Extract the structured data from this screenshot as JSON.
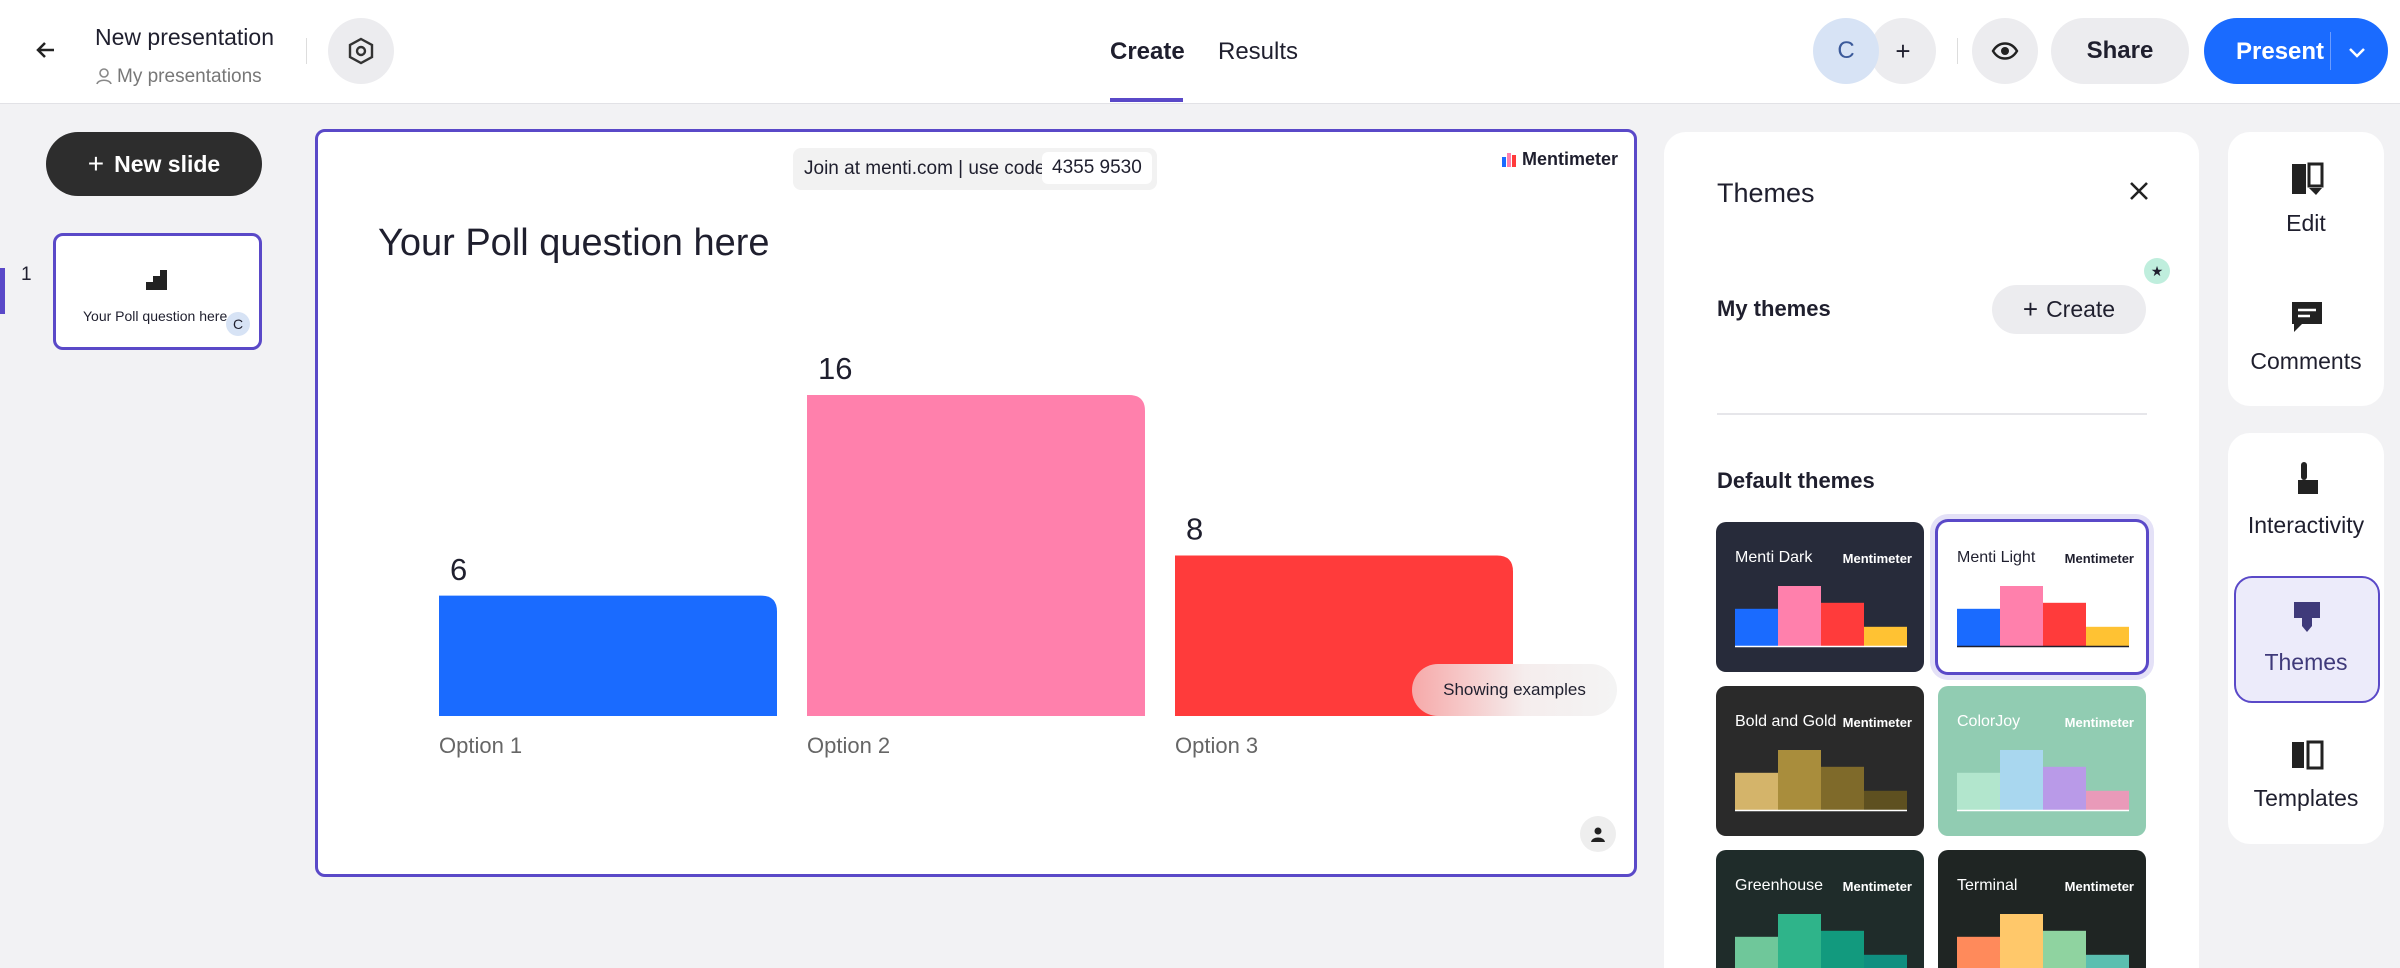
{
  "header": {
    "title": "New presentation",
    "subtitle": "My presentations",
    "tabs": [
      "Create",
      "Results"
    ],
    "avatar": "C",
    "share": "Share",
    "present": "Present"
  },
  "sidebar": {
    "new_slide": "New slide",
    "slides": [
      {
        "number": "1",
        "title": "Your Poll question here",
        "avatar": "C"
      }
    ]
  },
  "slide": {
    "join_text": "Join at menti.com | use code",
    "code": "4355 9530",
    "brand": "Mentimeter",
    "title": "Your Poll question here",
    "badge": "Showing examples",
    "chart": {
      "type": "bar",
      "categories": [
        "Option 1",
        "Option 2",
        "Option 3"
      ],
      "values": [
        6,
        16,
        8
      ],
      "colors": [
        "#1a6bff",
        "#ff80ac",
        "#ff3b3b"
      ]
    }
  },
  "themes_panel": {
    "title": "Themes",
    "my_themes": "My themes",
    "create": "Create",
    "default_themes": "Default themes",
    "themes": [
      {
        "name": "Menti Dark",
        "brand": "Mentimeter",
        "background": "#272b3a",
        "text": "#ffffff",
        "colors": [
          "#1a6bff",
          "#ff80ac",
          "#ff3b3b",
          "#ffc233"
        ]
      },
      {
        "name": "Menti Light",
        "brand": "Mentimeter",
        "background": "#ffffff",
        "text": "#1f1f2e",
        "colors": [
          "#1a6bff",
          "#ff80ac",
          "#ff3b3b",
          "#ffc233"
        ]
      },
      {
        "name": "Bold and Gold",
        "brand": "Mentimeter",
        "background": "#2a2a2a",
        "text": "#ffffff",
        "colors": [
          "#d4b46a",
          "#a98d3c",
          "#7f6a2a",
          "#5e5020"
        ]
      },
      {
        "name": "ColorJoy",
        "brand": "Mentimeter",
        "background": "#91ccb2",
        "text": "#ffffff",
        "colors": [
          "#b2e6cd",
          "#a9d7ef",
          "#b99ae8",
          "#e99ab9"
        ]
      },
      {
        "name": "Greenhouse",
        "brand": "Mentimeter",
        "background": "#1f2c2a",
        "text": "#ffffff",
        "colors": [
          "#6fc79a",
          "#2fb48a",
          "#129a7e",
          "#0f8f80"
        ]
      },
      {
        "name": "Terminal",
        "brand": "Mentimeter",
        "background": "#1f2523",
        "text": "#ffffff",
        "colors": [
          "#ff8a5b",
          "#ffc86a",
          "#8fd3a0",
          "#5bbfb0"
        ]
      }
    ]
  },
  "tools": [
    "Edit",
    "Comments",
    "Interactivity",
    "Themes",
    "Templates"
  ]
}
